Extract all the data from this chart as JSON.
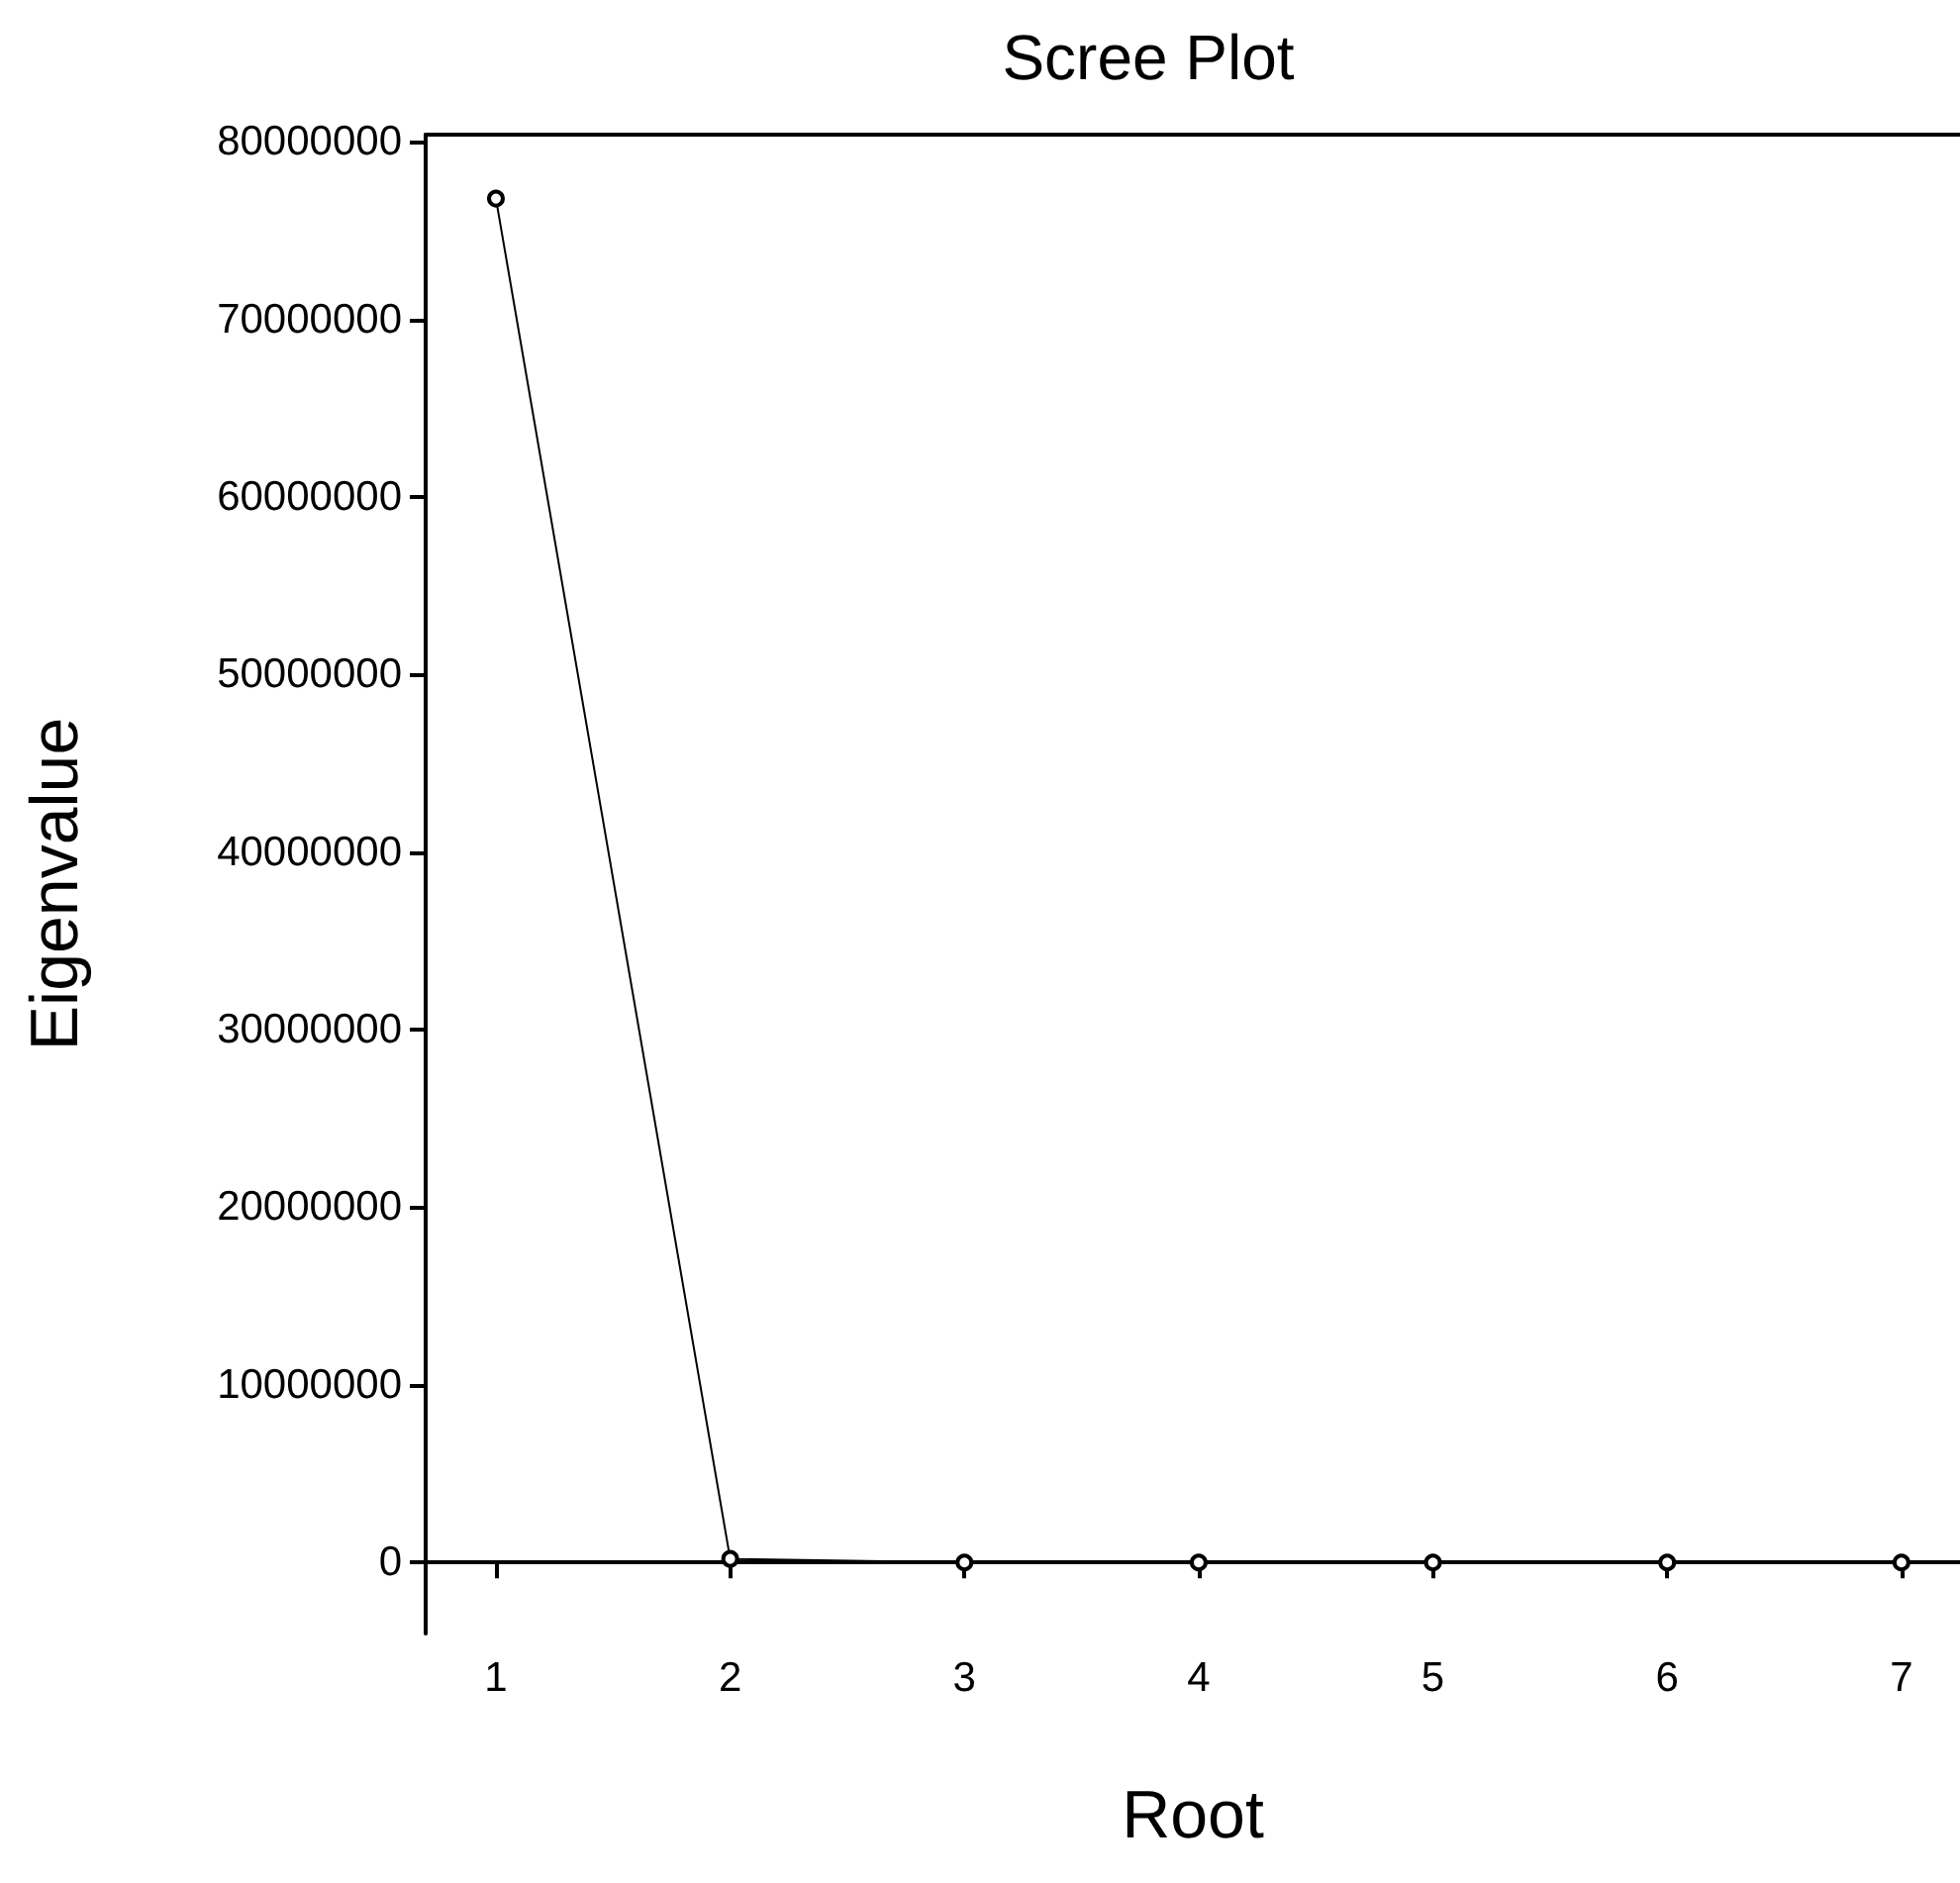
{
  "chart_data": {
    "type": "line",
    "title": "Scree Plot",
    "xlabel": "Root",
    "ylabel": "Eigenvalue",
    "x": [
      1,
      2,
      3,
      4,
      5,
      6,
      7
    ],
    "series": [
      {
        "color": "#000000",
        "values": [
          76800000,
          200000,
          0,
          0,
          0,
          0,
          0
        ]
      }
    ],
    "xlim": [
      0.7,
      7.25
    ],
    "xticks": [
      1,
      2,
      3,
      4,
      5,
      6,
      7
    ],
    "ylim": [
      -4000000,
      80400000
    ],
    "yticks": [
      0,
      10000000,
      20000000,
      30000000,
      40000000,
      50000000,
      60000000,
      70000000,
      80000000
    ],
    "grid": false,
    "marker": "circle",
    "line_style": "solid"
  }
}
